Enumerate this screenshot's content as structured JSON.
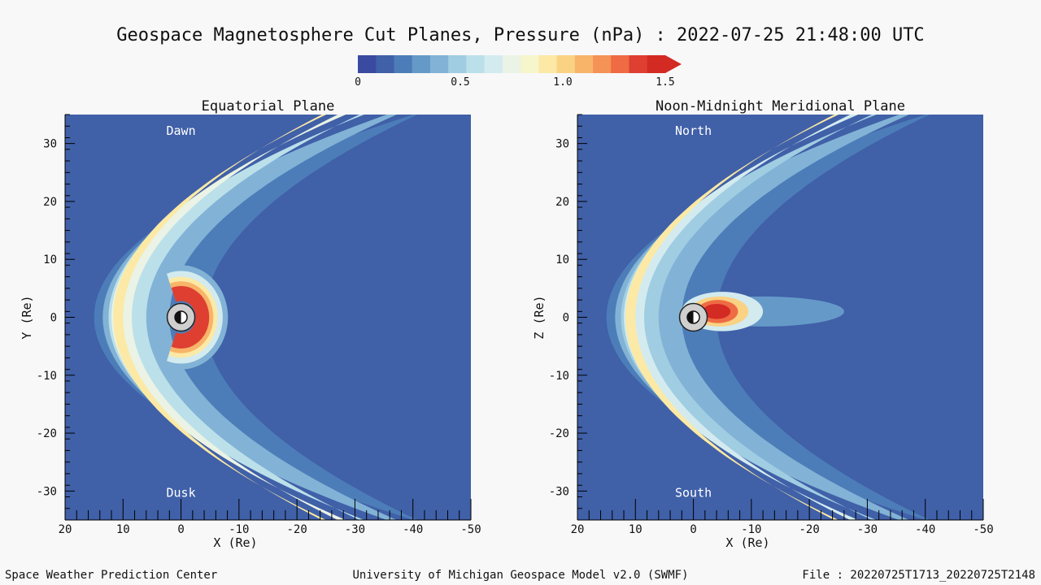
{
  "title": "Geospace Magnetosphere Cut Planes, Pressure (nPa) : 2022-07-25 21:48:00 UTC",
  "colorbar": {
    "colors": [
      "#3a4aa0",
      "#4060a8",
      "#4c7db8",
      "#659ac8",
      "#82b3d6",
      "#a0cde2",
      "#bbe0ea",
      "#d3ebef",
      "#eaf3e5",
      "#f7f5cc",
      "#fbe9a5",
      "#fad283",
      "#f8b469",
      "#f59255",
      "#ee6b44",
      "#de3f31",
      "#d32a24"
    ],
    "ticks": [
      {
        "value": 0,
        "label": "0"
      },
      {
        "value": 0.5,
        "label": "0.5"
      },
      {
        "value": 1.0,
        "label": "1.0"
      },
      {
        "value": 1.5,
        "label": "1.5"
      }
    ],
    "range": [
      0,
      1.5
    ]
  },
  "chart_data": [
    {
      "type": "heatmap",
      "title": "Equatorial Plane",
      "xlabel": "X (Re)",
      "ylabel": "Y (Re)",
      "xlim": [
        20,
        -50
      ],
      "ylim": [
        -35,
        35
      ],
      "xticks": [
        20,
        10,
        0,
        -10,
        -20,
        -30,
        -40,
        -50
      ],
      "yticks": [
        30,
        20,
        10,
        0,
        -10,
        -20,
        -30
      ],
      "x_tick_labels": [
        "20",
        "10",
        "0",
        "-10",
        "-20",
        "-30",
        "-40",
        "-50"
      ],
      "y_tick_labels": [
        "30",
        "20",
        "10",
        "0",
        "-10",
        "-20",
        "-30"
      ],
      "annotations": [
        "Dawn",
        "Dusk"
      ],
      "variable": "Pressure (nPa)",
      "background_value": 0.05,
      "features": [
        {
          "name": "magnetosheath",
          "peak_pressure": 1.05,
          "nose_x": 12,
          "flank_extent_y": 35
        },
        {
          "name": "ring-current",
          "peak_pressure": 1.45,
          "peak_x": -5,
          "peak_y": 0
        }
      ]
    },
    {
      "type": "heatmap",
      "title": "Noon-Midnight Meridional Plane",
      "xlabel": "X (Re)",
      "ylabel": "Z (Re)",
      "xlim": [
        20,
        -50
      ],
      "ylim": [
        -35,
        35
      ],
      "xticks": [
        20,
        10,
        0,
        -10,
        -20,
        -30,
        -40,
        -50
      ],
      "yticks": [
        30,
        20,
        10,
        0,
        -10,
        -20,
        -30
      ],
      "x_tick_labels": [
        "20",
        "10",
        "0",
        "-10",
        "-20",
        "-30",
        "-40",
        "-50"
      ],
      "y_tick_labels": [
        "30",
        "20",
        "10",
        "0",
        "-10",
        "-20",
        "-30"
      ],
      "annotations": [
        "North",
        "South"
      ],
      "variable": "Pressure (nPa)",
      "background_value": 0.05,
      "features": [
        {
          "name": "magnetosheath",
          "peak_pressure": 1.0,
          "nose_x": 12,
          "flank_extent_z": 35
        },
        {
          "name": "plasma-sheet",
          "peak_pressure": 1.5,
          "peak_x": -4,
          "peak_z": 1,
          "tail_extent_x": -28
        }
      ]
    }
  ],
  "footer": {
    "left": "Space Weather Prediction Center",
    "center": "University of Michigan Geospace Model v2.0 (SWMF)",
    "right": "File : 20220725T1713_20220725T2148"
  }
}
